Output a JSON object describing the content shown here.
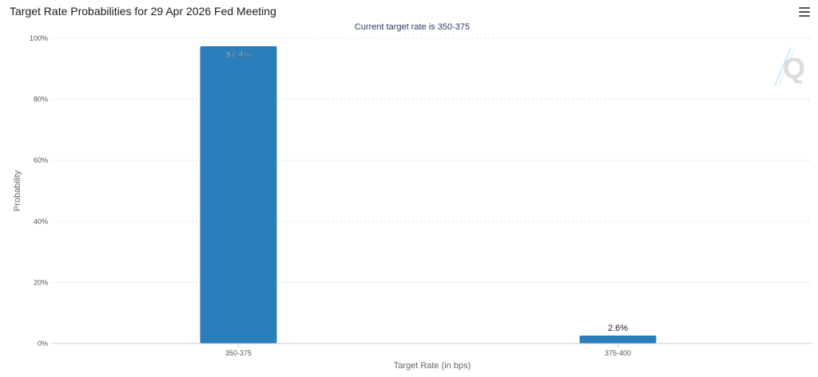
{
  "chart_data": {
    "type": "bar",
    "title": "Target Rate Probabilities for 29 Apr 2026 Fed Meeting",
    "subtitle": "Current target rate is 350-375",
    "xlabel": "Target Rate (in bps)",
    "ylabel": "Probability",
    "categories": [
      "350-375",
      "375-400"
    ],
    "values": [
      97.4,
      2.6
    ],
    "data_labels": [
      "97.4%",
      "2.6%"
    ],
    "ylim": [
      0,
      100
    ],
    "yticks": [
      0,
      20,
      40,
      60,
      80,
      100
    ],
    "ytick_labels": [
      "0%",
      "20%",
      "40%",
      "60%",
      "80%",
      "100%"
    ],
    "grid": "horizontal-dotted",
    "bar_color": "#2a7fba",
    "watermark": "Q"
  },
  "menu": {
    "icon": "hamburger-icon"
  }
}
